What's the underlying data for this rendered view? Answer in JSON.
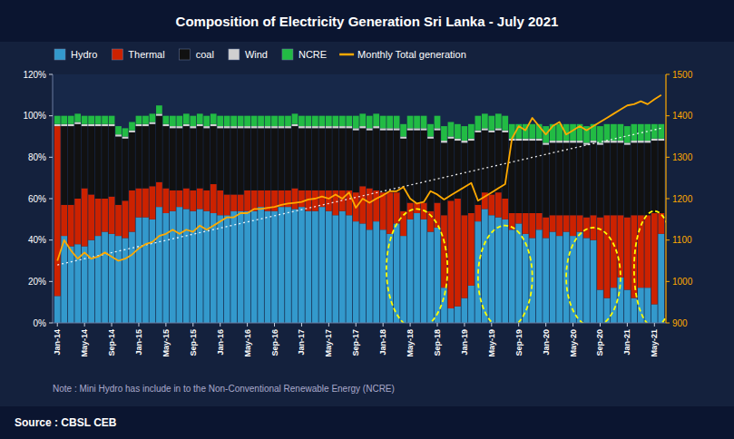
{
  "chart_data": {
    "type": "bar",
    "stacked": true,
    "title": "Composition of Electricity Generation Sri Lanka - July 2021",
    "note": "Note : Mini Hydro has include in to the Non-Conventional Renewable Energy (NCRE)",
    "source": "Source : CBSL  CEB",
    "grid": false,
    "legend": "top-left",
    "categories": [
      "Jan-14",
      null,
      null,
      null,
      "May-14",
      null,
      null,
      null,
      "Sep-14",
      null,
      null,
      null,
      "Jan-15",
      null,
      null,
      null,
      "May-15",
      null,
      null,
      null,
      "Sep-15",
      null,
      null,
      null,
      "Jan-16",
      null,
      null,
      null,
      "May-16",
      null,
      null,
      null,
      "Sep-16",
      null,
      null,
      null,
      "Jan-17",
      null,
      null,
      null,
      "May-17",
      null,
      null,
      null,
      "Sep-17",
      null,
      null,
      null,
      "Jan-18",
      null,
      null,
      null,
      "May-18",
      null,
      null,
      null,
      "Sep-18",
      null,
      null,
      null,
      "Jan-19",
      null,
      null,
      null,
      "May-19",
      null,
      null,
      null,
      "Sep-19",
      null,
      null,
      null,
      "Jan-20",
      null,
      null,
      null,
      "May-20",
      null,
      null,
      null,
      "Sep-20",
      null,
      null,
      null,
      "Jan-21",
      null,
      null,
      null,
      "May-21",
      null
    ],
    "ylim": [
      0,
      1.2
    ],
    "yticks": [
      {
        "value": 0,
        "label": "0%"
      },
      {
        "value": 0.2,
        "label": "20%"
      },
      {
        "value": 0.4,
        "label": "40%"
      },
      {
        "value": 0.6,
        "label": "60%"
      },
      {
        "value": 0.8,
        "label": "80%"
      },
      {
        "value": 1.0,
        "label": "100%"
      },
      {
        "value": 1.2,
        "label": "120%"
      }
    ],
    "y2lim": [
      900,
      1500
    ],
    "y2ticks": [
      900,
      1000,
      1100,
      1200,
      1300,
      1400,
      1500
    ],
    "series": [
      {
        "name": "Hydro",
        "color": "#3399cc",
        "values": [
          0.13,
          0.42,
          0.37,
          0.38,
          0.37,
          0.4,
          0.42,
          0.44,
          0.43,
          0.42,
          0.41,
          0.44,
          0.51,
          0.51,
          0.5,
          0.56,
          0.53,
          0.54,
          0.56,
          0.55,
          0.54,
          0.55,
          0.54,
          0.53,
          0.52,
          0.52,
          0.54,
          0.54,
          0.54,
          0.54,
          0.56,
          0.54,
          0.54,
          0.56,
          0.56,
          0.55,
          0.56,
          0.54,
          0.54,
          0.56,
          0.54,
          0.52,
          0.54,
          0.52,
          0.49,
          0.48,
          0.45,
          0.49,
          0.45,
          0.43,
          0.48,
          0.42,
          0.5,
          0.53,
          0.5,
          0.44,
          0.46,
          0.17,
          0.07,
          0.08,
          0.12,
          0.18,
          0.49,
          0.55,
          0.52,
          0.51,
          0.5,
          0.45,
          0.48,
          0.43,
          0.41,
          0.45,
          0.41,
          0.44,
          0.42,
          0.44,
          0.42,
          0.44,
          0.41,
          0.4,
          0.16,
          0.12,
          0.17,
          0.22,
          0.16,
          0.12,
          0.17,
          0.17,
          0.09,
          0.43
        ]
      },
      {
        "name": "Thermal",
        "color": "#cc2200",
        "values": [
          0.82,
          0.15,
          0.2,
          0.22,
          0.28,
          0.22,
          0.18,
          0.16,
          0.18,
          0.15,
          0.18,
          0.2,
          0.14,
          0.14,
          0.16,
          0.12,
          0.12,
          0.1,
          0.08,
          0.1,
          0.1,
          0.1,
          0.1,
          0.14,
          0.12,
          0.1,
          0.08,
          0.08,
          0.1,
          0.1,
          0.08,
          0.1,
          0.1,
          0.08,
          0.08,
          0.1,
          0.08,
          0.1,
          0.1,
          0.08,
          0.1,
          0.12,
          0.1,
          0.12,
          0.14,
          0.18,
          0.2,
          0.15,
          0.18,
          0.2,
          0.15,
          0.12,
          0.08,
          0.05,
          0.08,
          0.1,
          0.12,
          0.35,
          0.52,
          0.52,
          0.4,
          0.35,
          0.08,
          0.08,
          0.1,
          0.12,
          0.1,
          0.08,
          0.05,
          0.1,
          0.12,
          0.08,
          0.1,
          0.08,
          0.1,
          0.08,
          0.1,
          0.08,
          0.1,
          0.12,
          0.35,
          0.4,
          0.35,
          0.3,
          0.35,
          0.4,
          0.35,
          0.35,
          0.44,
          0.1
        ]
      },
      {
        "name": "coal",
        "color": "#111111",
        "values": [
          0.0,
          0.38,
          0.38,
          0.36,
          0.3,
          0.33,
          0.35,
          0.35,
          0.34,
          0.33,
          0.3,
          0.28,
          0.3,
          0.3,
          0.3,
          0.32,
          0.3,
          0.3,
          0.3,
          0.3,
          0.3,
          0.3,
          0.3,
          0.28,
          0.3,
          0.32,
          0.32,
          0.32,
          0.3,
          0.3,
          0.3,
          0.3,
          0.3,
          0.3,
          0.3,
          0.3,
          0.3,
          0.3,
          0.3,
          0.3,
          0.3,
          0.3,
          0.3,
          0.3,
          0.3,
          0.28,
          0.28,
          0.3,
          0.3,
          0.3,
          0.3,
          0.35,
          0.35,
          0.35,
          0.35,
          0.35,
          0.35,
          0.35,
          0.3,
          0.28,
          0.35,
          0.35,
          0.35,
          0.3,
          0.3,
          0.3,
          0.32,
          0.35,
          0.35,
          0.35,
          0.35,
          0.35,
          0.35,
          0.35,
          0.35,
          0.35,
          0.35,
          0.35,
          0.35,
          0.35,
          0.35,
          0.35,
          0.35,
          0.35,
          0.35,
          0.35,
          0.35,
          0.35,
          0.35,
          0.35
        ]
      },
      {
        "name": "Wind",
        "color": "#d0d0d0",
        "values": [
          0.01,
          0.01,
          0.01,
          0.01,
          0.01,
          0.01,
          0.01,
          0.01,
          0.01,
          0.01,
          0.01,
          0.01,
          0.01,
          0.01,
          0.01,
          0.01,
          0.01,
          0.01,
          0.01,
          0.01,
          0.01,
          0.01,
          0.01,
          0.01,
          0.01,
          0.01,
          0.01,
          0.01,
          0.01,
          0.01,
          0.01,
          0.01,
          0.01,
          0.01,
          0.01,
          0.01,
          0.01,
          0.01,
          0.01,
          0.01,
          0.01,
          0.01,
          0.01,
          0.01,
          0.01,
          0.01,
          0.01,
          0.01,
          0.01,
          0.01,
          0.01,
          0.01,
          0.01,
          0.01,
          0.01,
          0.01,
          0.01,
          0.01,
          0.01,
          0.01,
          0.01,
          0.01,
          0.01,
          0.01,
          0.01,
          0.01,
          0.01,
          0.01,
          0.01,
          0.01,
          0.01,
          0.01,
          0.01,
          0.01,
          0.01,
          0.01,
          0.01,
          0.01,
          0.01,
          0.01,
          0.01,
          0.01,
          0.01,
          0.01,
          0.01,
          0.01,
          0.01,
          0.01,
          0.01,
          0.01
        ]
      },
      {
        "name": "NCRE",
        "color": "#22bb44",
        "values": [
          0.04,
          0.04,
          0.04,
          0.04,
          0.04,
          0.04,
          0.04,
          0.04,
          0.04,
          0.04,
          0.04,
          0.04,
          0.04,
          0.04,
          0.04,
          0.04,
          0.04,
          0.05,
          0.05,
          0.05,
          0.05,
          0.05,
          0.05,
          0.05,
          0.05,
          0.05,
          0.05,
          0.05,
          0.05,
          0.05,
          0.05,
          0.05,
          0.05,
          0.05,
          0.05,
          0.05,
          0.05,
          0.05,
          0.05,
          0.05,
          0.05,
          0.05,
          0.05,
          0.05,
          0.06,
          0.06,
          0.06,
          0.06,
          0.06,
          0.06,
          0.06,
          0.06,
          0.06,
          0.06,
          0.06,
          0.06,
          0.06,
          0.07,
          0.07,
          0.07,
          0.07,
          0.07,
          0.07,
          0.07,
          0.07,
          0.07,
          0.07,
          0.07,
          0.07,
          0.07,
          0.07,
          0.07,
          0.08,
          0.08,
          0.08,
          0.08,
          0.08,
          0.08,
          0.08,
          0.08,
          0.08,
          0.08,
          0.08,
          0.08,
          0.08,
          0.08,
          0.08,
          0.08,
          0.07,
          0.07
        ]
      },
      {
        "name": "Monthly Total generation",
        "type": "line",
        "axis": "y2",
        "color": "#ffaa00",
        "values": [
          1050,
          1100,
          1075,
          1055,
          1070,
          1055,
          1060,
          1070,
          1060,
          1050,
          1055,
          1065,
          1080,
          1090,
          1095,
          1110,
          1115,
          1125,
          1115,
          1125,
          1120,
          1135,
          1125,
          1135,
          1145,
          1155,
          1155,
          1165,
          1165,
          1175,
          1175,
          1178,
          1180,
          1185,
          1188,
          1190,
          1192,
          1198,
          1200,
          1205,
          1200,
          1210,
          1200,
          1215,
          1178,
          1200,
          1190,
          1200,
          1208,
          1218,
          1218,
          1228,
          1200,
          1188,
          1192,
          1218,
          1210,
          1198,
          1208,
          1218,
          1228,
          1238,
          1195,
          1205,
          1215,
          1225,
          1235,
          1345,
          1375,
          1365,
          1395,
          1375,
          1355,
          1375,
          1385,
          1355,
          1365,
          1375,
          1365,
          1375,
          1385,
          1395,
          1405,
          1415,
          1425,
          1428,
          1435,
          1428,
          1440,
          1450
        ]
      }
    ],
    "trend_line": {
      "values": [
        1040,
        1370
      ],
      "axis": "y2",
      "color": "#ffffff",
      "line_style": "dotted"
    },
    "ellipses": [
      {
        "cx": 53,
        "cy": 0.26,
        "w": 9,
        "h": 0.58,
        "color": "#ffff00"
      },
      {
        "cx": 66,
        "cy": 0.22,
        "w": 8,
        "h": 0.5,
        "color": "#ffff00"
      },
      {
        "cx": 79,
        "cy": 0.22,
        "w": 8,
        "h": 0.48,
        "color": "#ffff00"
      },
      {
        "cx": 88,
        "cy": 0.26,
        "w": 6,
        "h": 0.56,
        "color": "#ffff00"
      }
    ]
  }
}
